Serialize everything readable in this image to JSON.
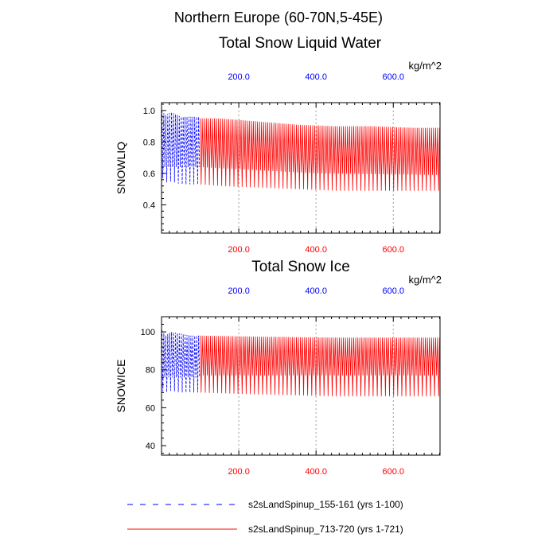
{
  "page": {
    "region_title": "Northern Europe (60-70N,5-45E)",
    "units": "kg/m^2"
  },
  "colors": {
    "blue": "#0000ff",
    "red": "#ff0000",
    "axis": "#000000",
    "grid": "#a0a0a0"
  },
  "chart_data": [
    {
      "type": "line",
      "title": "Total Snow Liquid Water",
      "ylabel": "SNOWLIQ",
      "units": "kg/m^2",
      "xlim": [
        0,
        721
      ],
      "ylim": [
        0.22,
        1.05
      ],
      "yticks": [
        0.4,
        0.6,
        0.8,
        1.0
      ],
      "yticklabels": [
        "0.4",
        "0.6",
        "0.8",
        "1.0"
      ],
      "xticks": [
        200,
        400,
        600
      ],
      "xticklabels_top": [
        "200.0",
        "400.0",
        "600.0"
      ],
      "xticklabels_bottom": [
        "200.0",
        "400.0",
        "600.0"
      ],
      "grid": "vertical dotted at x ticks",
      "series": [
        {
          "name": "s2sLandSpinup_155-161 (yrs 1-100)",
          "color": "#0000ff",
          "style": "dashed",
          "x_start": 1,
          "x_end": 100,
          "max_x": [
            1,
            10,
            25,
            50,
            75,
            100
          ],
          "max_y": [
            1.0,
            0.97,
            0.99,
            0.96,
            0.96,
            0.96
          ],
          "min_x": [
            1,
            10,
            25,
            50,
            75,
            100
          ],
          "min_y": [
            0.58,
            0.54,
            0.55,
            0.53,
            0.53,
            0.53
          ],
          "mid_x": [
            1,
            100
          ],
          "mid_y": [
            0.64,
            0.64
          ]
        },
        {
          "name": "s2sLandSpinup_713-720 (yrs 1-721)",
          "color": "#ff0000",
          "style": "solid",
          "x_start": 100,
          "x_end": 721,
          "max_x": [
            100,
            150,
            250,
            350,
            450,
            550,
            650,
            721
          ],
          "max_y": [
            0.95,
            0.95,
            0.93,
            0.91,
            0.9,
            0.9,
            0.89,
            0.89
          ],
          "min_x": [
            100,
            150,
            250,
            350,
            450,
            550,
            650,
            721
          ],
          "min_y": [
            0.53,
            0.52,
            0.51,
            0.5,
            0.49,
            0.49,
            0.49,
            0.49
          ],
          "mid_x": [
            100,
            250,
            400,
            721
          ],
          "mid_y": [
            0.64,
            0.62,
            0.6,
            0.59
          ]
        }
      ]
    },
    {
      "type": "line",
      "title": "Total Snow Ice",
      "ylabel": "SNOWICE",
      "units": "kg/m^2",
      "xlim": [
        0,
        721
      ],
      "ylim": [
        35,
        108
      ],
      "yticks": [
        40,
        60,
        80,
        100
      ],
      "yticklabels": [
        "40",
        "60",
        "80",
        "100"
      ],
      "xticks": [
        200,
        400,
        600
      ],
      "xticklabels_top": [
        "200.0",
        "400.0",
        "600.0"
      ],
      "xticklabels_bottom": [
        "200.0",
        "400.0",
        "600.0"
      ],
      "grid": "vertical dotted at x ticks",
      "series": [
        {
          "name": "s2sLandSpinup_155-161 (yrs 1-100)",
          "color": "#0000ff",
          "style": "dashed",
          "x_start": 1,
          "x_end": 100,
          "max_x": [
            1,
            10,
            25,
            50,
            75,
            100
          ],
          "max_y": [
            101,
            98,
            100,
            99,
            98,
            98
          ],
          "min_x": [
            1,
            10,
            25,
            50,
            75,
            100
          ],
          "min_y": [
            69,
            68,
            69,
            68,
            68,
            68
          ],
          "mid_x": [
            1,
            100
          ],
          "mid_y": [
            76,
            76
          ]
        },
        {
          "name": "s2sLandSpinup_713-720 (yrs 1-721)",
          "color": "#ff0000",
          "style": "solid",
          "x_start": 100,
          "x_end": 721,
          "max_x": [
            100,
            250,
            450,
            721
          ],
          "max_y": [
            98,
            97.5,
            97,
            97
          ],
          "min_x": [
            100,
            250,
            450,
            721
          ],
          "min_y": [
            68,
            67,
            66,
            66
          ],
          "mid_x": [
            100,
            721
          ],
          "mid_y": [
            77,
            77
          ]
        }
      ]
    }
  ],
  "legend": {
    "placement": "bottom",
    "entries": [
      {
        "label": "s2sLandSpinup_155-161 (yrs 1-100)",
        "color": "#0000ff",
        "style": "dashed"
      },
      {
        "label": "s2sLandSpinup_713-720 (yrs 1-721)",
        "color": "#ff0000",
        "style": "solid"
      }
    ]
  }
}
